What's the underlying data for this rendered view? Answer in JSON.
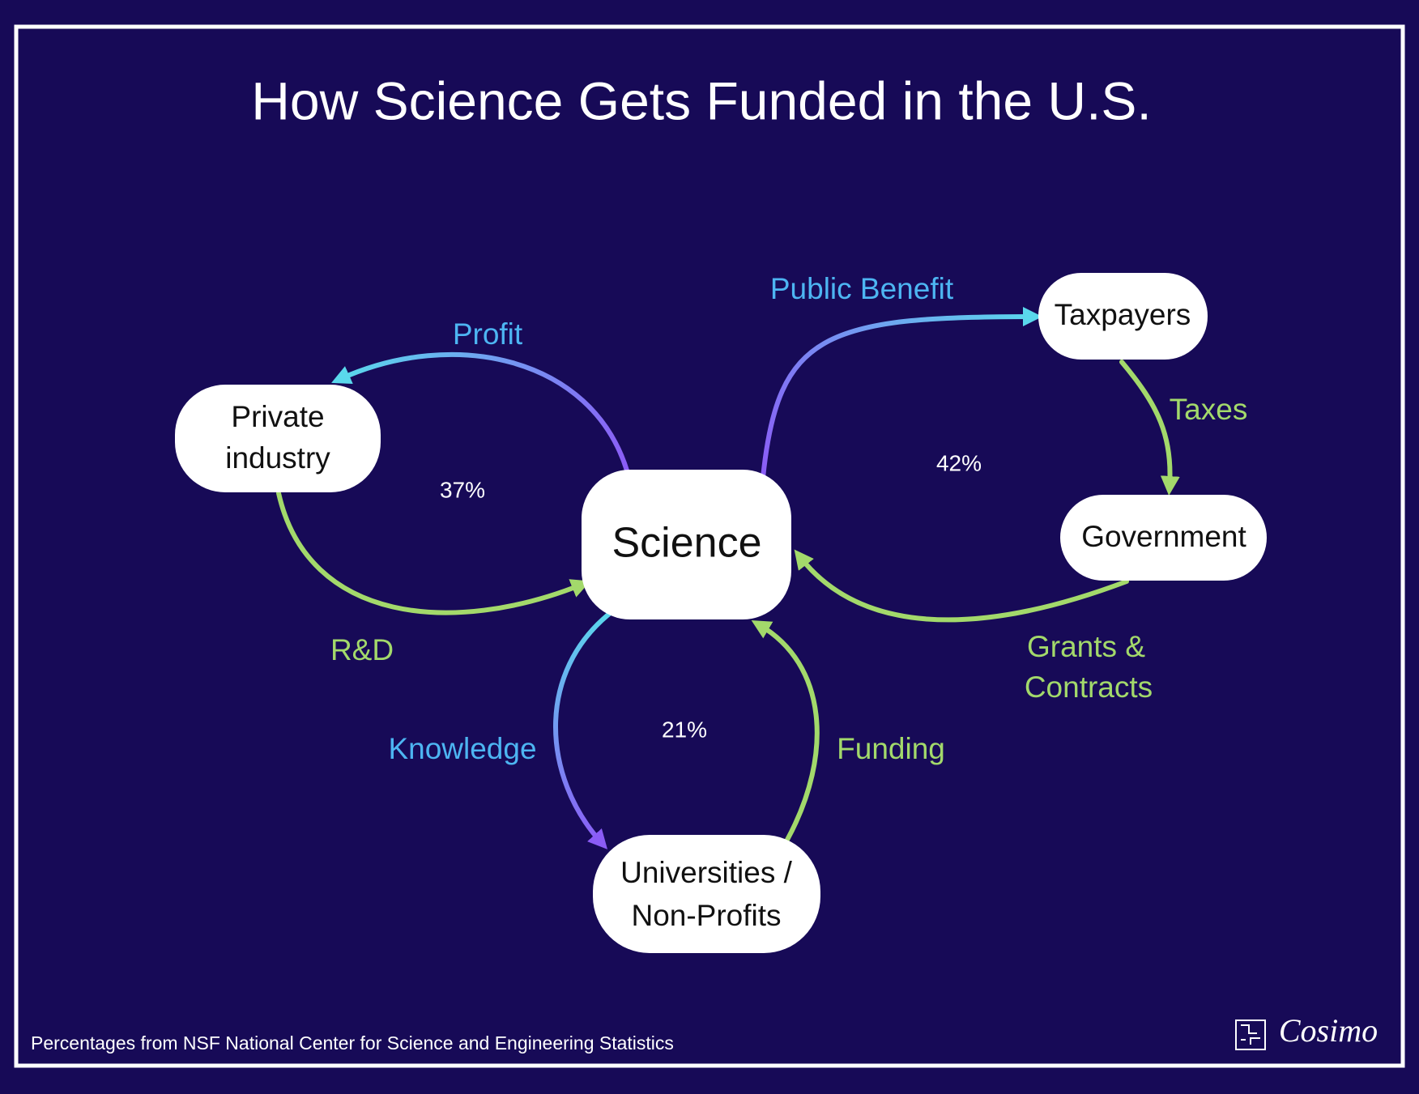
{
  "header": {
    "title": "How Science Gets Funded in the U.S."
  },
  "nodes": [
    {
      "lines": [
        "Science"
      ]
    },
    {
      "lines": [
        "Private",
        "industry"
      ]
    },
    {
      "lines": [
        "Taxpayers"
      ]
    },
    {
      "lines": [
        "Government"
      ]
    },
    {
      "lines": [
        "Universities /",
        "Non-Profits"
      ]
    }
  ],
  "edges": [
    {
      "lines": [
        "Profit"
      ]
    },
    {
      "lines": [
        "R&D"
      ]
    },
    {
      "lines": [
        "Public Benefit"
      ]
    },
    {
      "lines": [
        "Taxes"
      ]
    },
    {
      "lines": [
        "Grants &",
        "Contracts"
      ]
    },
    {
      "lines": [
        "Knowledge"
      ]
    },
    {
      "lines": [
        "Funding"
      ]
    }
  ],
  "shares": [
    "37%",
    "42%",
    "21%"
  ],
  "footer": {
    "note": "Percentages from NSF National Center for Science and Engineering Statistics",
    "brand": "Cosimo"
  }
}
